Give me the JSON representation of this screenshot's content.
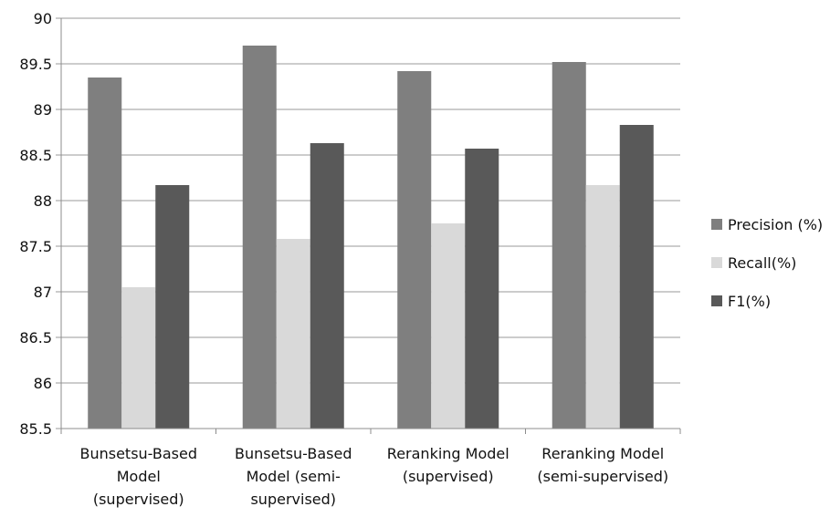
{
  "chart_data": {
    "type": "bar",
    "categories": [
      [
        "Bunsetsu-Based",
        "Model",
        "(supervised)"
      ],
      [
        "Bunsetsu-Based",
        "Model (semi-",
        "supervised)"
      ],
      [
        "Reranking Model",
        "(supervised)"
      ],
      [
        "Reranking Model",
        "(semi-supervised)"
      ]
    ],
    "series": [
      {
        "name": "Precision (%)",
        "values": [
          89.35,
          89.7,
          89.42,
          89.52
        ],
        "color": "#7f7f7f"
      },
      {
        "name": "Recall(%)",
        "values": [
          87.05,
          87.58,
          87.75,
          88.17
        ],
        "color": "#d9d9d9"
      },
      {
        "name": "F1(%)",
        "values": [
          88.17,
          88.63,
          88.57,
          88.83
        ],
        "color": "#595959"
      }
    ],
    "title": "",
    "xlabel": "",
    "ylabel": "",
    "ylim": [
      85.5,
      90
    ],
    "yticks": [
      "85.5",
      "86",
      "86.5",
      "87",
      "87.5",
      "88",
      "88.5",
      "89",
      "89.5",
      "90"
    ],
    "grid": true,
    "legend": "right"
  }
}
